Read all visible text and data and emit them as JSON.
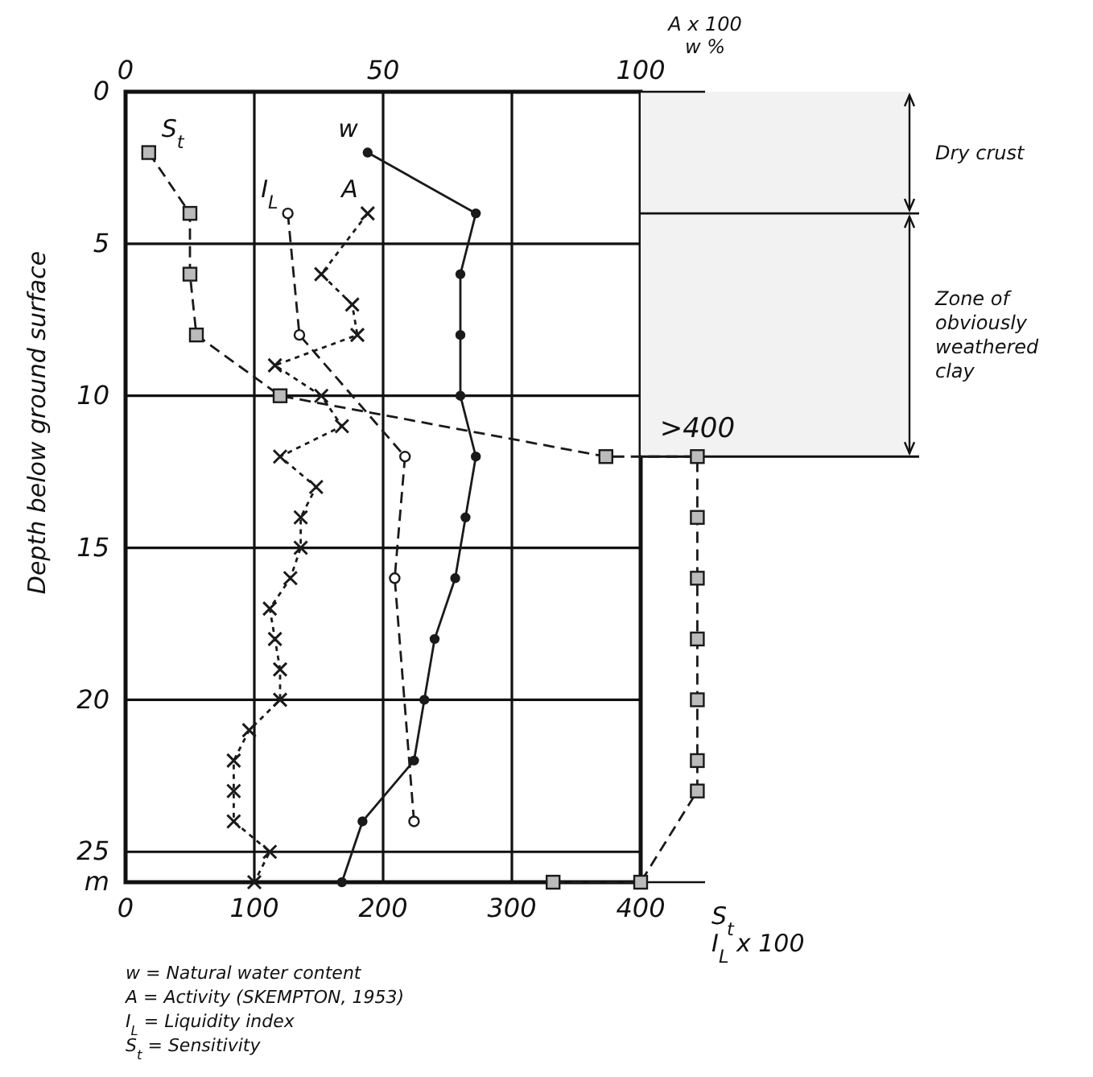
{
  "chart_data": {
    "type": "line",
    "ylabel": "Depth below ground surface",
    "xlabel": "S$_{t}$\nI$_{L}$ x 100",
    "x2label": "A x 100\nw %",
    "xlim": [
      0,
      450
    ],
    "xticks": [
      0,
      100,
      200,
      300,
      400
    ],
    "x2lim": [
      0,
      112.5
    ],
    "x2ticks": [
      0,
      50,
      100
    ],
    "ylim": [
      26,
      0
    ],
    "yticks": [
      0,
      5,
      10,
      15,
      20,
      25,
      {
        "value": 26,
        "label": "m"
      }
    ],
    "grid": true,
    "series": [
      {
        "name": "S$_{t}$",
        "color": "#1a1a1a",
        "marker": "square",
        "line_style": "dashed",
        "x": [
          18,
          50,
          50,
          55,
          120,
          373,
          444,
          444,
          444,
          444,
          444,
          444,
          444,
          400,
          332
        ],
        "values": [
          2,
          4,
          6,
          8,
          10,
          12,
          12,
          14,
          16,
          18,
          20,
          22,
          23,
          26,
          26
        ]
      },
      {
        "name": "I$_{L}$",
        "color": "#1a1a1a",
        "marker": "circle",
        "line_style": "dashed",
        "x": [
          126,
          135,
          217,
          209,
          224
        ],
        "values": [
          4,
          8,
          12,
          16,
          24
        ]
      },
      {
        "name": "A",
        "color": "#1a1a1a",
        "marker": "cross",
        "line_style": "dotted",
        "axis": "x2",
        "x": [
          47,
          38,
          44,
          45,
          29,
          38,
          42,
          30,
          37,
          34,
          34,
          32,
          28,
          29,
          30,
          30,
          24,
          21,
          21,
          21,
          28,
          25
        ],
        "values": [
          4,
          6,
          7,
          8,
          9,
          10,
          11,
          12,
          13,
          14,
          15,
          16,
          17,
          18,
          19,
          20,
          21,
          22,
          23,
          24,
          25,
          26
        ]
      },
      {
        "name": "w",
        "color": "#1a1a1a",
        "marker": "circle",
        "line_style": "solid",
        "axis": "x2",
        "x": [
          47,
          68,
          65,
          65,
          65,
          68,
          66,
          64,
          60,
          58,
          56,
          46,
          42
        ],
        "values": [
          2,
          4,
          6,
          8,
          10,
          12,
          14,
          16,
          18,
          20,
          22,
          24,
          26
        ]
      }
    ],
    "ref_lines": [
      {
        "axis": "y",
        "value": 4
      },
      {
        "axis": "y",
        "value": 12
      }
    ],
    "bands": [
      {
        "axis": "y",
        "from": 0,
        "to": 4,
        "label": "Dry crust"
      },
      {
        "axis": "y",
        "from": 4,
        "to": 12,
        "label": "Zone of obviously weathered clay"
      }
    ],
    "annotations": [
      {
        "text": ">400",
        "x": 444,
        "y": 12
      },
      "w = Natural water content",
      "A = Activity (SKEMPTON, 1953)",
      "I$_{L}$ = Liquidity index",
      "S$_{t}$ = Sensitivity"
    ]
  }
}
